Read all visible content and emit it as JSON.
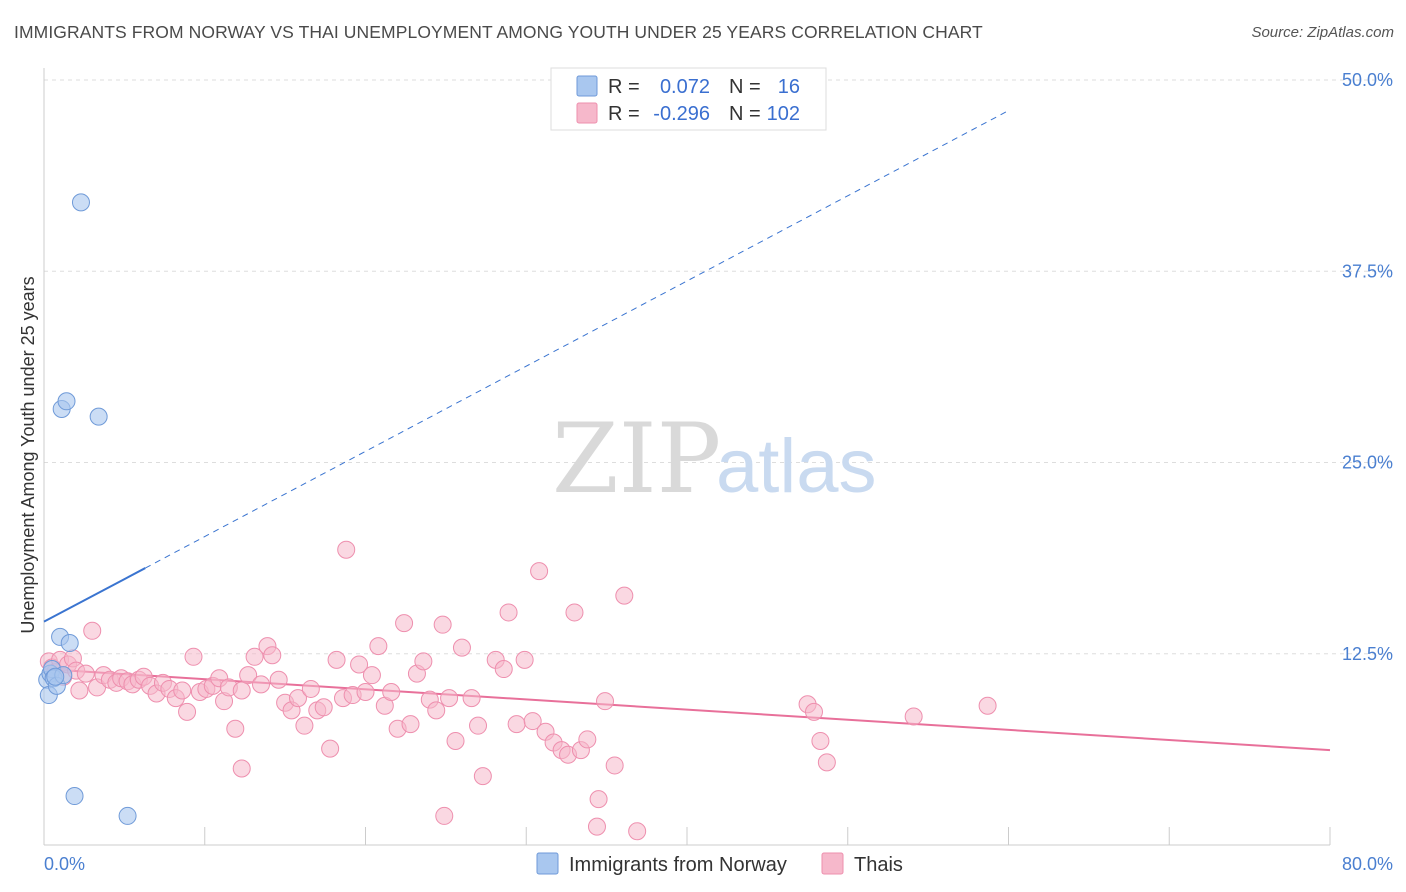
{
  "title": "IMMIGRANTS FROM NORWAY VS THAI UNEMPLOYMENT AMONG YOUTH UNDER 25 YEARS CORRELATION CHART",
  "source": "Source: ZipAtlas.com",
  "colors": {
    "norway_fill": "#a9c7ef",
    "norway_stroke": "#6f9ad8",
    "norway_line": "#3a74d0",
    "thai_fill": "#f6b8cb",
    "thai_stroke": "#ee8fae",
    "thai_line": "#e8709a",
    "tick_text": "#4a7fd0",
    "grid": "#dddddd"
  },
  "legend": {
    "norway": {
      "r_label": "R =",
      "r_value": "0.072",
      "n_label": "N =",
      "n_value": "16"
    },
    "thai": {
      "r_label": "R =",
      "r_value": "-0.296",
      "n_label": "N =",
      "n_value": "102"
    }
  },
  "watermark": {
    "zip": "ZIP",
    "atlas": "atlas"
  },
  "chart_data": {
    "type": "scatter",
    "title": "IMMIGRANTS FROM NORWAY VS THAI UNEMPLOYMENT AMONG YOUTH UNDER 25 YEARS CORRELATION CHART",
    "xlabel": "",
    "ylabel": "Unemployment Among Youth under 25 years",
    "xlim": [
      0,
      80
    ],
    "ylim": [
      0,
      50
    ],
    "x_tick_labels": [
      "0.0%",
      "80.0%"
    ],
    "y_ticks": [
      12.5,
      25.0,
      37.5,
      50.0
    ],
    "y_tick_labels": [
      "12.5%",
      "25.0%",
      "37.5%",
      "50.0%"
    ],
    "grid": true,
    "legend_position": "top-center",
    "series": [
      {
        "name": "Immigrants from Norway",
        "trend": {
          "x0": 0,
          "y0": 14.6,
          "x1": 6.3,
          "y1": 18.1,
          "dashed_to_x": 60,
          "dashed_to_y": 48.0
        },
        "points": [
          [
            0.2,
            10.8
          ],
          [
            0.3,
            9.8
          ],
          [
            0.4,
            11.2
          ],
          [
            0.5,
            11.5
          ],
          [
            0.6,
            10.9
          ],
          [
            0.8,
            10.4
          ],
          [
            1.0,
            13.6
          ],
          [
            1.1,
            28.5
          ],
          [
            1.2,
            11.1
          ],
          [
            1.4,
            29.0
          ],
          [
            1.6,
            13.2
          ],
          [
            1.9,
            3.2
          ],
          [
            2.3,
            42.0
          ],
          [
            3.4,
            28.0
          ],
          [
            5.2,
            1.9
          ],
          [
            0.7,
            11.0
          ]
        ]
      },
      {
        "name": "Thais",
        "trend": {
          "x0": 0,
          "y0": 11.5,
          "x1": 80,
          "y1": 6.2
        },
        "points": [
          [
            0.3,
            12.0
          ],
          [
            0.5,
            11.6
          ],
          [
            0.7,
            11.3
          ],
          [
            1.0,
            12.1
          ],
          [
            1.2,
            11.0
          ],
          [
            1.5,
            11.8
          ],
          [
            1.8,
            12.2
          ],
          [
            2.0,
            11.4
          ],
          [
            2.2,
            10.1
          ],
          [
            2.6,
            11.2
          ],
          [
            3.0,
            14.0
          ],
          [
            3.3,
            10.3
          ],
          [
            3.7,
            11.1
          ],
          [
            4.1,
            10.8
          ],
          [
            4.5,
            10.6
          ],
          [
            4.8,
            10.9
          ],
          [
            5.2,
            10.7
          ],
          [
            5.5,
            10.5
          ],
          [
            5.9,
            10.8
          ],
          [
            6.2,
            11.0
          ],
          [
            6.6,
            10.4
          ],
          [
            7.0,
            9.9
          ],
          [
            7.4,
            10.6
          ],
          [
            7.8,
            10.2
          ],
          [
            8.2,
            9.6
          ],
          [
            8.6,
            10.1
          ],
          [
            8.9,
            8.7
          ],
          [
            9.3,
            12.3
          ],
          [
            9.7,
            10.0
          ],
          [
            10.1,
            10.2
          ],
          [
            10.5,
            10.4
          ],
          [
            10.9,
            10.9
          ],
          [
            11.2,
            9.4
          ],
          [
            11.5,
            10.3
          ],
          [
            11.9,
            7.6
          ],
          [
            12.3,
            10.1
          ],
          [
            12.7,
            11.1
          ],
          [
            13.1,
            12.3
          ],
          [
            13.5,
            10.5
          ],
          [
            13.9,
            13.0
          ],
          [
            14.2,
            12.4
          ],
          [
            14.6,
            10.8
          ],
          [
            15.0,
            9.3
          ],
          [
            15.4,
            8.8
          ],
          [
            15.8,
            9.6
          ],
          [
            16.2,
            7.8
          ],
          [
            16.6,
            10.2
          ],
          [
            17.0,
            8.8
          ],
          [
            17.4,
            9.0
          ],
          [
            17.8,
            6.3
          ],
          [
            18.2,
            12.1
          ],
          [
            18.6,
            9.6
          ],
          [
            18.8,
            19.3
          ],
          [
            19.2,
            9.8
          ],
          [
            19.6,
            11.8
          ],
          [
            20.0,
            10.0
          ],
          [
            20.4,
            11.1
          ],
          [
            20.8,
            13.0
          ],
          [
            21.2,
            9.1
          ],
          [
            21.6,
            10.0
          ],
          [
            22.0,
            7.6
          ],
          [
            22.4,
            14.5
          ],
          [
            22.8,
            7.9
          ],
          [
            23.2,
            11.2
          ],
          [
            23.6,
            12.0
          ],
          [
            24.0,
            9.5
          ],
          [
            24.4,
            8.8
          ],
          [
            24.8,
            14.4
          ],
          [
            25.2,
            9.6
          ],
          [
            25.6,
            6.8
          ],
          [
            26.0,
            12.9
          ],
          [
            26.6,
            9.6
          ],
          [
            27.0,
            7.8
          ],
          [
            27.3,
            4.5
          ],
          [
            28.1,
            12.1
          ],
          [
            28.6,
            11.5
          ],
          [
            28.9,
            15.2
          ],
          [
            29.4,
            7.9
          ],
          [
            29.9,
            12.1
          ],
          [
            30.4,
            8.1
          ],
          [
            30.8,
            17.9
          ],
          [
            31.2,
            7.4
          ],
          [
            31.7,
            6.7
          ],
          [
            32.2,
            6.2
          ],
          [
            32.6,
            5.9
          ],
          [
            33.0,
            15.2
          ],
          [
            33.4,
            6.2
          ],
          [
            33.8,
            6.9
          ],
          [
            34.4,
            1.2
          ],
          [
            34.9,
            9.4
          ],
          [
            35.5,
            5.2
          ],
          [
            36.1,
            16.3
          ],
          [
            36.9,
            0.9
          ],
          [
            47.5,
            9.2
          ],
          [
            47.9,
            8.7
          ],
          [
            48.3,
            6.8
          ],
          [
            48.7,
            5.4
          ],
          [
            54.1,
            8.4
          ],
          [
            58.7,
            9.1
          ],
          [
            24.9,
            1.9
          ],
          [
            12.3,
            5.0
          ],
          [
            34.5,
            3.0
          ]
        ]
      }
    ]
  },
  "axis": {
    "ylabel": "Unemployment Among Youth under 25 years",
    "x_min_label": "0.0%",
    "x_max_label": "80.0%",
    "y_tick_labels": [
      "12.5%",
      "25.0%",
      "37.5%",
      "50.0%"
    ]
  },
  "bottom_legend": {
    "norway": "Immigrants from Norway",
    "thai": "Thais"
  }
}
